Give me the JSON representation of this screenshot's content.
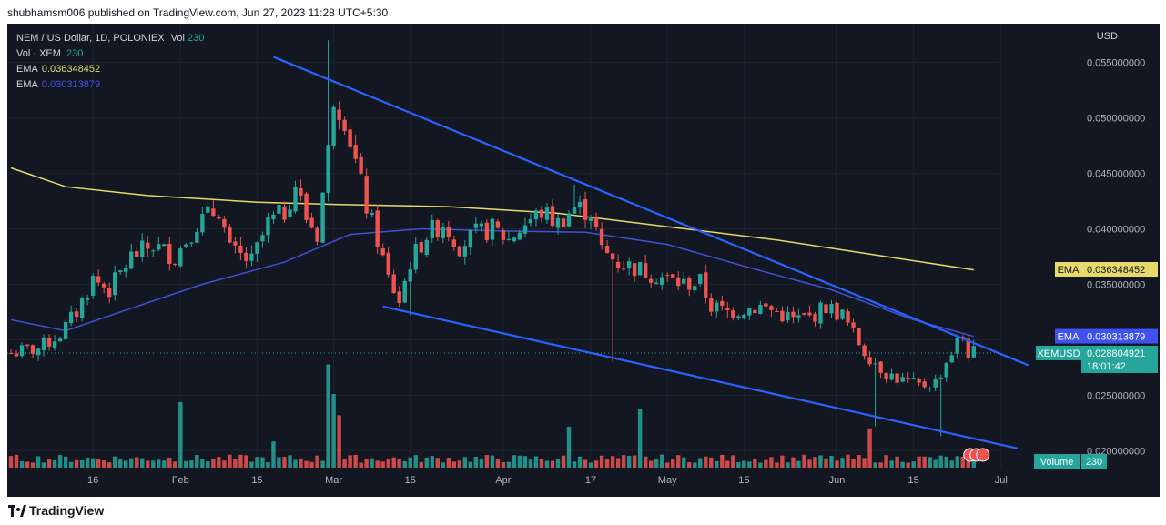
{
  "header": {
    "publisher_line": "shubhamsm006 published on TradingView.com, Jun 27, 2023 11:28 UTC+5:30"
  },
  "legend": {
    "symbol_line": "NEM / US Dollar, 1D, POLONIEX",
    "vol_label": "Vol",
    "vol_value": "230",
    "vol_sub_label": "Vol · XEM",
    "vol_sub_value": "230",
    "ema1_label": "EMA",
    "ema1_value": "0.036348452",
    "ema2_label": "EMA",
    "ema2_value": "0.030313879"
  },
  "currency": "USD",
  "footer": {
    "brand": "TradingView"
  },
  "colors": {
    "up": "#26a69a",
    "down": "#ef5350",
    "ema200": "#e7d96b",
    "ema50": "#3f51d6",
    "trendline": "#2962ff",
    "background": "#131722",
    "axis_text": "#b2b5be"
  },
  "chart_data": {
    "type": "candlestick",
    "title": "NEM / US Dollar, 1D, POLONIEX",
    "ylabel": "USD",
    "ylim": [
      0.0183,
      0.0585
    ],
    "y_ticks": [
      0.02,
      0.025,
      0.03,
      0.035,
      0.04,
      0.045,
      0.05,
      0.055
    ],
    "y_tick_labels": [
      "0.020000000",
      "0.025000000",
      "0.030000000",
      "0.035000000",
      "0.040000000",
      "0.045000000",
      "0.050000000",
      "0.055000000"
    ],
    "x_tick_labels": [
      "16",
      "Feb",
      "15",
      "Mar",
      "15",
      "Apr",
      "17",
      "May",
      "15",
      "Jun",
      "15",
      "Jul"
    ],
    "x_tick_days": [
      15,
      31,
      45,
      59,
      73,
      90,
      106,
      120,
      134,
      151,
      165,
      181
    ],
    "start_date": "2023-01-01",
    "ohlc_anchors": [
      {
        "d": 0,
        "c": 0.0288
      },
      {
        "d": 5,
        "c": 0.0292
      },
      {
        "d": 9,
        "c": 0.0305
      },
      {
        "d": 12,
        "c": 0.0325
      },
      {
        "d": 15,
        "c": 0.0355
      },
      {
        "d": 18,
        "c": 0.0345
      },
      {
        "d": 22,
        "c": 0.0375
      },
      {
        "d": 26,
        "c": 0.0385
      },
      {
        "d": 30,
        "c": 0.0375
      },
      {
        "d": 34,
        "c": 0.0405
      },
      {
        "d": 38,
        "c": 0.0418
      },
      {
        "d": 40,
        "c": 0.038
      },
      {
        "d": 44,
        "c": 0.037
      },
      {
        "d": 47,
        "c": 0.0405
      },
      {
        "d": 50,
        "c": 0.0415
      },
      {
        "d": 52,
        "c": 0.044
      },
      {
        "d": 54,
        "c": 0.041
      },
      {
        "d": 56,
        "c": 0.0395
      },
      {
        "d": 58,
        "c": 0.047
      },
      {
        "d": 59,
        "c": 0.052
      },
      {
        "d": 61,
        "c": 0.05
      },
      {
        "d": 63,
        "c": 0.046
      },
      {
        "d": 65,
        "c": 0.042
      },
      {
        "d": 67,
        "c": 0.039
      },
      {
        "d": 69,
        "c": 0.0355
      },
      {
        "d": 71,
        "c": 0.0335
      },
      {
        "d": 73,
        "c": 0.037
      },
      {
        "d": 76,
        "c": 0.0395
      },
      {
        "d": 79,
        "c": 0.0405
      },
      {
        "d": 82,
        "c": 0.0385
      },
      {
        "d": 85,
        "c": 0.0395
      },
      {
        "d": 88,
        "c": 0.04
      },
      {
        "d": 91,
        "c": 0.039
      },
      {
        "d": 94,
        "c": 0.0405
      },
      {
        "d": 97,
        "c": 0.0415
      },
      {
        "d": 100,
        "c": 0.0405
      },
      {
        "d": 103,
        "c": 0.042
      },
      {
        "d": 106,
        "c": 0.0415
      },
      {
        "d": 108,
        "c": 0.038
      },
      {
        "d": 111,
        "c": 0.037
      },
      {
        "d": 114,
        "c": 0.0365
      },
      {
        "d": 117,
        "c": 0.036
      },
      {
        "d": 120,
        "c": 0.0355
      },
      {
        "d": 123,
        "c": 0.035
      },
      {
        "d": 126,
        "c": 0.0352
      },
      {
        "d": 128,
        "c": 0.033
      },
      {
        "d": 131,
        "c": 0.0325
      },
      {
        "d": 134,
        "c": 0.0328
      },
      {
        "d": 137,
        "c": 0.033
      },
      {
        "d": 140,
        "c": 0.0325
      },
      {
        "d": 143,
        "c": 0.0318
      },
      {
        "d": 146,
        "c": 0.032
      },
      {
        "d": 149,
        "c": 0.033
      },
      {
        "d": 152,
        "c": 0.0322
      },
      {
        "d": 154,
        "c": 0.0305
      },
      {
        "d": 156,
        "c": 0.029
      },
      {
        "d": 158,
        "c": 0.028
      },
      {
        "d": 160,
        "c": 0.027
      },
      {
        "d": 163,
        "c": 0.0263
      },
      {
        "d": 166,
        "c": 0.0258
      },
      {
        "d": 169,
        "c": 0.0262
      },
      {
        "d": 171,
        "c": 0.028
      },
      {
        "d": 173,
        "c": 0.0298
      },
      {
        "d": 174,
        "c": 0.0302
      },
      {
        "d": 175,
        "c": 0.0288
      },
      {
        "d": 176,
        "c": 0.0288
      }
    ],
    "wick_spikes": [
      {
        "d": 58,
        "high": 0.057
      },
      {
        "d": 73,
        "low": 0.0322
      },
      {
        "d": 110,
        "low": 0.028
      },
      {
        "d": 103,
        "high": 0.044
      },
      {
        "d": 158,
        "low": 0.0222
      },
      {
        "d": 170,
        "low": 0.0213
      }
    ],
    "ema_200": [
      {
        "d": 0,
        "v": 0.0455
      },
      {
        "d": 10,
        "v": 0.0438
      },
      {
        "d": 25,
        "v": 0.043
      },
      {
        "d": 45,
        "v": 0.0424
      },
      {
        "d": 60,
        "v": 0.0422
      },
      {
        "d": 80,
        "v": 0.042
      },
      {
        "d": 100,
        "v": 0.0414
      },
      {
        "d": 120,
        "v": 0.0402
      },
      {
        "d": 140,
        "v": 0.039
      },
      {
        "d": 160,
        "v": 0.0375
      },
      {
        "d": 176,
        "v": 0.0363
      }
    ],
    "ema_50": [
      {
        "d": 0,
        "v": 0.0318
      },
      {
        "d": 10,
        "v": 0.0308
      },
      {
        "d": 20,
        "v": 0.0325
      },
      {
        "d": 35,
        "v": 0.035
      },
      {
        "d": 50,
        "v": 0.037
      },
      {
        "d": 62,
        "v": 0.0395
      },
      {
        "d": 75,
        "v": 0.04
      },
      {
        "d": 90,
        "v": 0.0398
      },
      {
        "d": 105,
        "v": 0.0397
      },
      {
        "d": 120,
        "v": 0.0386
      },
      {
        "d": 135,
        "v": 0.0365
      },
      {
        "d": 150,
        "v": 0.0345
      },
      {
        "d": 165,
        "v": 0.0318
      },
      {
        "d": 176,
        "v": 0.0303
      }
    ],
    "trendlines": [
      {
        "from": {
          "d": 48,
          "v": 0.0555
        },
        "to": {
          "d": 186,
          "v": 0.0277
        }
      },
      {
        "from": {
          "d": 68,
          "v": 0.033
        },
        "to": {
          "d": 184,
          "v": 0.0202
        }
      }
    ],
    "volume_spikes": [
      {
        "d": 31,
        "v": 4
      },
      {
        "d": 58,
        "v": 6.3
      },
      {
        "d": 60,
        "v": 3.2
      },
      {
        "d": 59,
        "v": 4.5
      },
      {
        "d": 115,
        "v": 3.6
      },
      {
        "d": 102,
        "v": 2.5
      },
      {
        "d": 157,
        "v": 2.4
      },
      {
        "d": 48,
        "v": 1.6
      }
    ],
    "price_labels": [
      {
        "label": "EMA",
        "value": "0.036348452",
        "price": 0.036348452,
        "color": "#e7d96b",
        "text_color": "#131722"
      },
      {
        "label": "EMA",
        "value": "0.030313879",
        "price": 0.030313879,
        "color": "#3f51ee",
        "text_color": "#ffffff"
      },
      {
        "label": "XEMUSD",
        "value": "0.028804921",
        "sub": "18:01:42",
        "price": 0.028804921,
        "color": "#26a69a",
        "text_color": "#ffffff"
      }
    ],
    "volume_label": {
      "label": "Volume",
      "value": "230"
    }
  }
}
